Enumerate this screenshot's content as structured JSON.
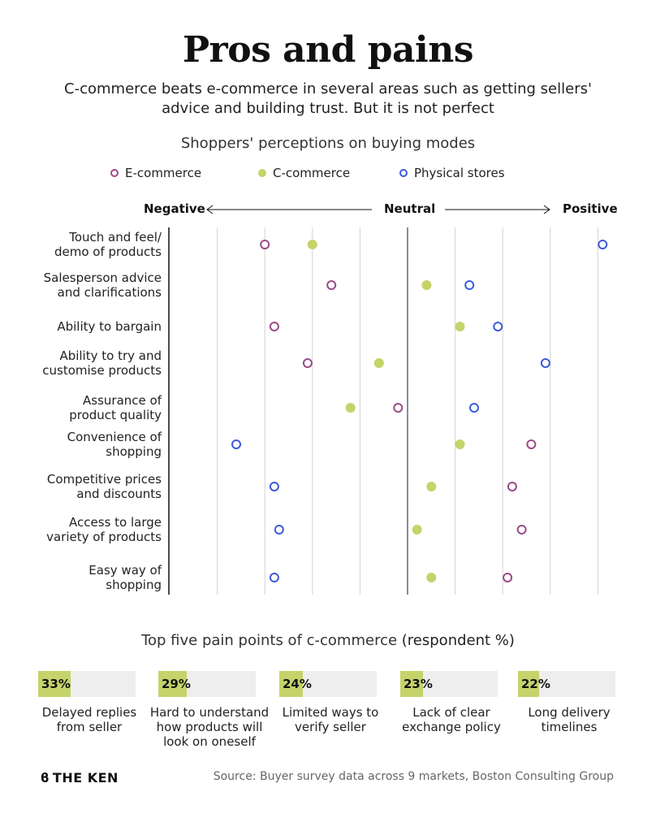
{
  "title": "Pros and pains",
  "subtitle": "C-commerce beats e-commerce in several areas such as getting sellers' advice and building trust. But it is not perfect",
  "chart_data": {
    "type": "scatter",
    "title": "Shoppers' perceptions on buying modes",
    "axis": {
      "negative_label": "Negative",
      "neutral_label": "Neutral",
      "positive_label": "Positive",
      "xlim": [
        -5,
        5
      ]
    },
    "grid": true,
    "legend_position": "top",
    "series": [
      {
        "name": "E-commerce",
        "color": "#9b4a86",
        "marker": "hollow"
      },
      {
        "name": "C-commerce",
        "color": "#c5d36a",
        "marker": "filled"
      },
      {
        "name": "Physical stores",
        "color": "#3b5bd9",
        "marker": "hollow"
      }
    ],
    "categories": [
      "Touch and feel/\ndemo of products",
      "Salesperson advice\nand clarifications",
      "Ability to bargain",
      "Ability to try and\ncustomise products",
      "Assurance of\nproduct quality",
      "Convenience of\nshopping",
      "Competitive prices\nand discounts",
      "Access to large\nvariety of products",
      "Easy way of\nshopping"
    ],
    "values": {
      "E-commerce": [
        -3.0,
        -1.6,
        -2.8,
        -2.1,
        -0.2,
        2.6,
        2.2,
        2.4,
        2.1
      ],
      "C-commerce": [
        -2.0,
        0.4,
        1.1,
        -0.6,
        -1.2,
        1.1,
        0.5,
        0.2,
        0.5
      ],
      "Physical stores": [
        4.1,
        1.3,
        1.9,
        2.9,
        1.4,
        -3.6,
        -2.8,
        -2.7,
        -2.8
      ]
    }
  },
  "pain_points": {
    "title": "Top five pain points of c-commerce",
    "unit": "(respondent %)",
    "items": [
      {
        "value": 33,
        "value_label": "33%",
        "label": "Delayed replies\nfrom seller"
      },
      {
        "value": 29,
        "value_label": "29%",
        "label": "Hard to understand\nhow products will\nlook on oneself"
      },
      {
        "value": 24,
        "value_label": "24%",
        "label": "Limited ways to\nverify seller"
      },
      {
        "value": 23,
        "value_label": "23%",
        "label": "Lack of clear\nexchange policy"
      },
      {
        "value": 22,
        "value_label": "22%",
        "label": "Long delivery\ntimelines"
      }
    ]
  },
  "footer": {
    "brand": "THE KEN",
    "brand_icon": "ken-logo-icon",
    "source": "Source: Buyer survey data across 9 markets, Boston Consulting Group"
  }
}
